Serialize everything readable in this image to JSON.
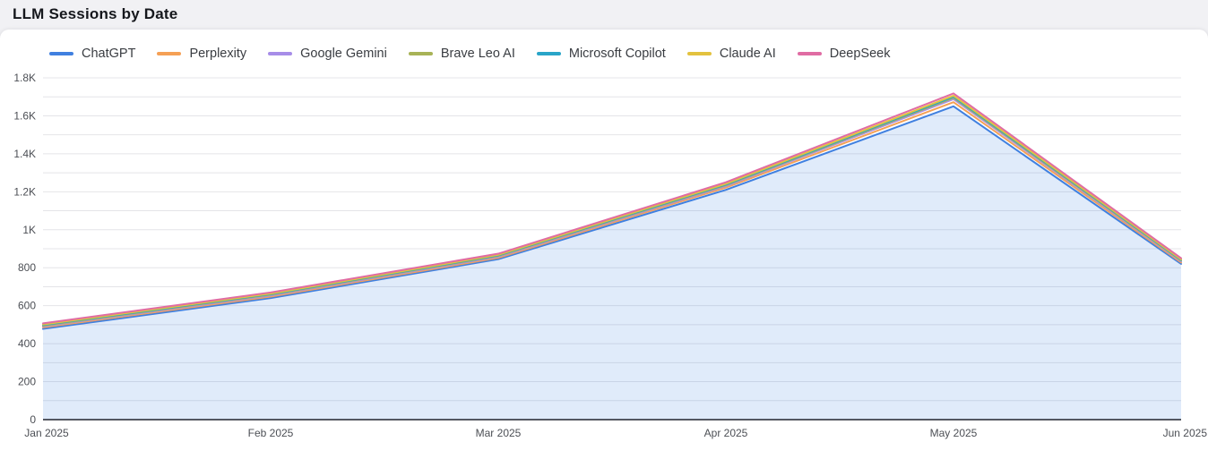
{
  "page": {
    "title": "LLM Sessions by Date"
  },
  "chart_data": {
    "type": "area",
    "title": "LLM Sessions by Date",
    "xlabel": "",
    "ylabel": "",
    "x_categories": [
      "Jan 2025",
      "Feb 2025",
      "Mar 2025",
      "Apr 2025",
      "May 2025",
      "Jun 2025"
    ],
    "series": [
      {
        "name": "ChatGPT",
        "color": "#4080e0",
        "area_fill": true,
        "values": [
          478,
          640,
          845,
          1210,
          1650,
          820
        ]
      },
      {
        "name": "Perplexity",
        "color": "#f5a055",
        "area_fill": false,
        "values": [
          486,
          648,
          852,
          1222,
          1672,
          828
        ]
      },
      {
        "name": "Google Gemini",
        "color": "#a78de8",
        "area_fill": false,
        "values": [
          491,
          654,
          858,
          1230,
          1688,
          834
        ]
      },
      {
        "name": "Brave Leo AI",
        "color": "#a8b357",
        "area_fill": false,
        "values": [
          495,
          658,
          862,
          1235,
          1695,
          838
        ]
      },
      {
        "name": "Microsoft Copilot",
        "color": "#29a5c8",
        "area_fill": false,
        "values": [
          498,
          661,
          865,
          1238,
          1700,
          841
        ]
      },
      {
        "name": "Claude AI",
        "color": "#e3c23e",
        "area_fill": false,
        "values": [
          501,
          664,
          868,
          1242,
          1706,
          844
        ]
      },
      {
        "name": "DeepSeek",
        "color": "#e06ca3",
        "area_fill": false,
        "values": [
          507,
          670,
          874,
          1250,
          1718,
          850
        ]
      }
    ],
    "ylim": [
      0,
      1800
    ],
    "grid_step": 100,
    "label_step": 200,
    "y_tick_labels": [
      "0",
      "200",
      "400",
      "600",
      "800",
      "1K",
      "1.2K",
      "1.4K",
      "1.6K",
      "1.8K"
    ],
    "grid": true,
    "legend_position": "top-left",
    "colors": {
      "fill_under_first_series": "rgba(64,128,224,0.16)",
      "gridline": "#e4e4e8",
      "axis_line": "#20242e",
      "tick_label": "#4c4f55",
      "card_background": "#ffffff",
      "page_background": "#f1f1f4"
    }
  }
}
